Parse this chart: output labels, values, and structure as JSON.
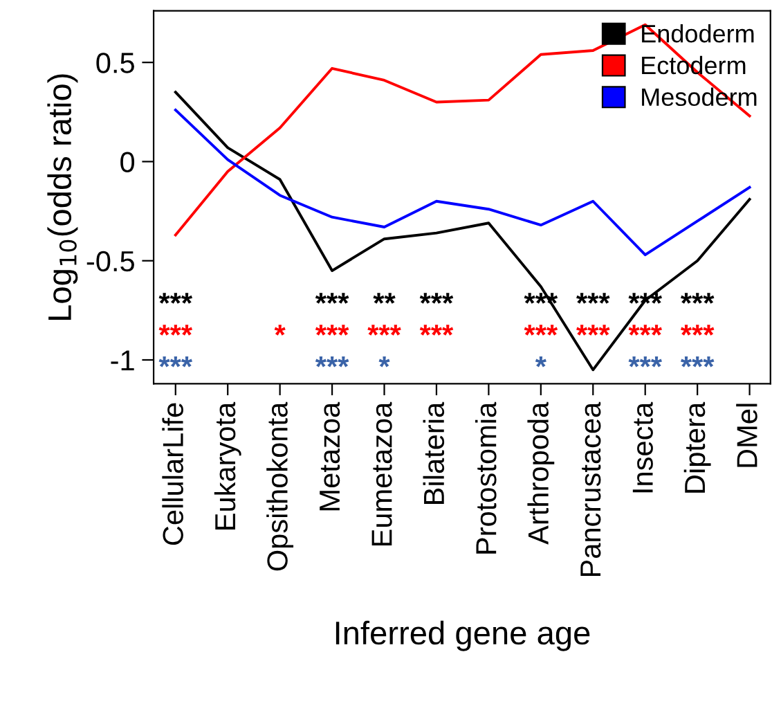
{
  "chart_data": {
    "type": "line",
    "xlabel": "Inferred gene age",
    "ylabel": "Log$_{10}$(odds ratio)",
    "categories": [
      "CellularLife",
      "Eukaryota",
      "Opsithokonta",
      "Metazoa",
      "Eumetazoa",
      "Bilateria",
      "Protostomia",
      "Arthropoda",
      "Pancrustacea",
      "Insecta",
      "Diptera",
      "DMel"
    ],
    "series": [
      {
        "name": "Endoderm",
        "color": "#000000",
        "values": [
          0.35,
          0.07,
          -0.09,
          -0.55,
          -0.39,
          -0.36,
          -0.31,
          -0.63,
          -1.05,
          -0.7,
          -0.5,
          -0.19
        ]
      },
      {
        "name": "Ectoderm",
        "color": "#ff0000",
        "values": [
          -0.37,
          -0.05,
          0.17,
          0.47,
          0.41,
          0.3,
          0.31,
          0.54,
          0.56,
          0.69,
          0.45,
          0.23
        ]
      },
      {
        "name": "Mesoderm",
        "color": "#0000ff",
        "values": [
          0.26,
          0.01,
          -0.17,
          -0.28,
          -0.33,
          -0.2,
          -0.24,
          -0.32,
          -0.2,
          -0.47,
          -0.3,
          -0.13
        ]
      }
    ],
    "ylim": [
      -1.12,
      0.76
    ],
    "yticks": [
      -1,
      -0.5,
      0,
      0.5
    ],
    "legend": "top right",
    "grid": false,
    "annotations": [
      "***",
      "***",
      "**",
      "***",
      "***",
      "***",
      "***",
      "***",
      "***",
      "*",
      "***",
      "***",
      "***",
      "***",
      "***",
      "***",
      "***",
      "***",
      "***",
      "*",
      "*",
      "***",
      "***"
    ]
  }
}
